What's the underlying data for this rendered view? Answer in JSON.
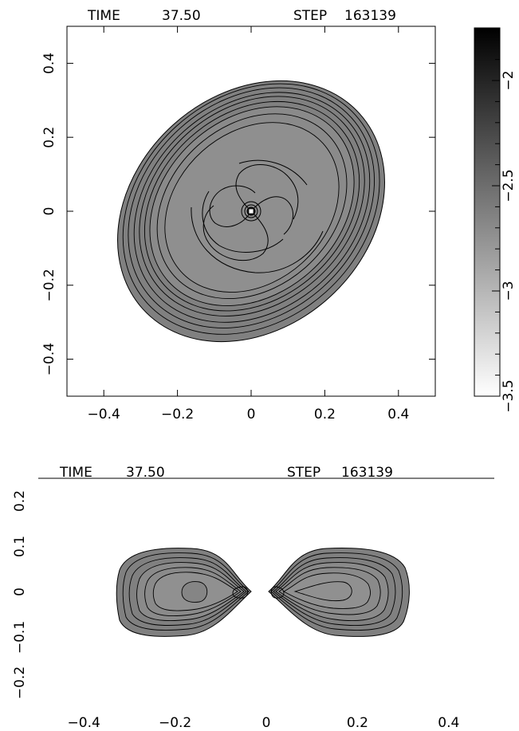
{
  "chart_data": [
    {
      "type": "heatmap",
      "title": "",
      "header": {
        "time_label": "TIME",
        "time_value": "37.50",
        "step_label": "STEP",
        "step_value": "163139"
      },
      "xlabel": "",
      "ylabel": "",
      "xlim": [
        -0.5,
        0.5
      ],
      "ylim": [
        -0.5,
        0.5
      ],
      "xticks": [
        "−0.4",
        "−0.2",
        "0",
        "0.2",
        "0.4"
      ],
      "yticks": [
        "−0.4",
        "−0.2",
        "0",
        "0.2",
        "0.4"
      ],
      "xtick_values": [
        -0.4,
        -0.2,
        0,
        0.2,
        0.4
      ],
      "ytick_values": [
        -0.4,
        -0.2,
        0,
        0.2,
        0.4
      ],
      "colormap": "grayscale (white = low, black = high)",
      "colorbar": {
        "range": [
          -3.5,
          -1.75
        ],
        "tick_labels": [
          "−2",
          "−2.5",
          "−3",
          "−3.5"
        ],
        "tick_values": [
          -2,
          -2.5,
          -3,
          -3.5
        ]
      },
      "contours": "log density contours of a tilted spiral disk, face-on view",
      "grid": false
    },
    {
      "type": "heatmap",
      "title": "",
      "header": {
        "time_label": "TIME",
        "time_value": "37.50",
        "step_label": "STEP",
        "step_value": "163139"
      },
      "xlabel": "",
      "ylabel": "",
      "xlim": [
        -0.5,
        0.5
      ],
      "ylim": [
        -0.25,
        0.25
      ],
      "xticks": [
        "−0.4",
        "−0.2",
        "0",
        "0.2",
        "0.4"
      ],
      "yticks": [
        "−0.2",
        "−0.1",
        "0",
        "0.1",
        "0.2"
      ],
      "xtick_values": [
        -0.4,
        -0.2,
        0,
        0.2,
        0.4
      ],
      "ytick_values": [
        -0.2,
        -0.1,
        0,
        0.1,
        0.2
      ],
      "contours": "log density contours of the disk, edge-on view",
      "grid": false
    }
  ]
}
